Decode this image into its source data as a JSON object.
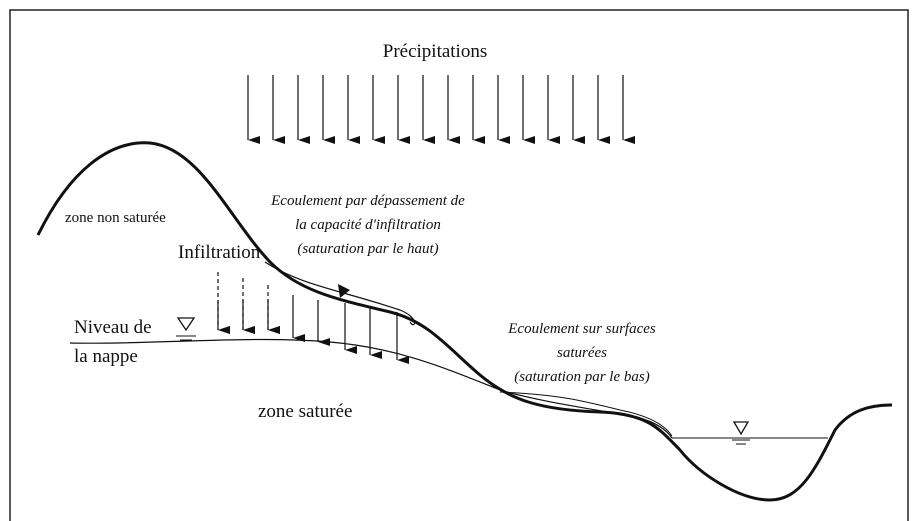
{
  "labels": {
    "precipitation": "Précipitations",
    "unsaturated": "zone non saturée",
    "infiltration": "Infiltration",
    "overland_1": "Ecoulement par dépassement de",
    "overland_2": "la capacité d'infiltration",
    "overland_3": "(saturation par le haut)",
    "water_table_1": "Niveau de",
    "water_table_2": "la nappe",
    "saturated_flow_1": "Ecoulement sur surfaces",
    "saturated_flow_2": "saturées",
    "saturated_flow_3": "(saturation par le bas)",
    "saturated": "zone saturée"
  }
}
